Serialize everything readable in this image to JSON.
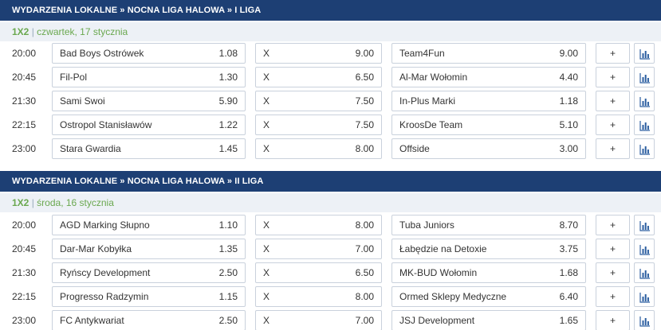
{
  "sections": [
    {
      "header": "WYDARZENIA LOKALNE » NOCNA LIGA HALOWA » I LIGA",
      "market": "1X2",
      "separator": "|",
      "date": "czwartek, 17 stycznia",
      "matches": [
        {
          "time": "20:00",
          "home": "Bad Boys Ostrówek",
          "home_odd": "1.08",
          "draw": "X",
          "draw_odd": "9.00",
          "away": "Team4Fun",
          "away_odd": "9.00",
          "plus": "+"
        },
        {
          "time": "20:45",
          "home": "Fil-Pol",
          "home_odd": "1.30",
          "draw": "X",
          "draw_odd": "6.50",
          "away": "Al-Mar Wołomin",
          "away_odd": "4.40",
          "plus": "+"
        },
        {
          "time": "21:30",
          "home": "Sami Swoi",
          "home_odd": "5.90",
          "draw": "X",
          "draw_odd": "7.50",
          "away": "In-Plus Marki",
          "away_odd": "1.18",
          "plus": "+"
        },
        {
          "time": "22:15",
          "home": "Ostropol Stanisławów",
          "home_odd": "1.22",
          "draw": "X",
          "draw_odd": "7.50",
          "away": "KroosDe Team",
          "away_odd": "5.10",
          "plus": "+"
        },
        {
          "time": "23:00",
          "home": "Stara Gwardia",
          "home_odd": "1.45",
          "draw": "X",
          "draw_odd": "8.00",
          "away": "Offside",
          "away_odd": "3.00",
          "plus": "+"
        }
      ]
    },
    {
      "header": "WYDARZENIA LOKALNE » NOCNA LIGA HALOWA » II LIGA",
      "market": "1X2",
      "separator": "|",
      "date": "środa, 16 stycznia",
      "matches": [
        {
          "time": "20:00",
          "home": "AGD Marking Słupno",
          "home_odd": "1.10",
          "draw": "X",
          "draw_odd": "8.00",
          "away": "Tuba Juniors",
          "away_odd": "8.70",
          "plus": "+"
        },
        {
          "time": "20:45",
          "home": "Dar-Mar Kobyłka",
          "home_odd": "1.35",
          "draw": "X",
          "draw_odd": "7.00",
          "away": "Łabędzie na Detoxie",
          "away_odd": "3.75",
          "plus": "+"
        },
        {
          "time": "21:30",
          "home": "Ryńscy Development",
          "home_odd": "2.50",
          "draw": "X",
          "draw_odd": "6.50",
          "away": "MK-BUD Wołomin",
          "away_odd": "1.68",
          "plus": "+"
        },
        {
          "time": "22:15",
          "home": "Progresso Radzymin",
          "home_odd": "1.15",
          "draw": "X",
          "draw_odd": "8.00",
          "away": "Ormed Sklepy Medyczne",
          "away_odd": "6.40",
          "plus": "+"
        },
        {
          "time": "23:00",
          "home": "FC Antykwariat",
          "home_odd": "2.50",
          "draw": "X",
          "draw_odd": "7.00",
          "away": "JSJ Development",
          "away_odd": "1.65",
          "plus": "+"
        }
      ]
    }
  ],
  "colors": {
    "header_bg": "#1d3f74",
    "date_bg": "#edf1f6",
    "market_green": "#6aa84f",
    "stats_icon": "#2b5ea0"
  },
  "icons": {
    "stats": "bar-chart-icon"
  }
}
